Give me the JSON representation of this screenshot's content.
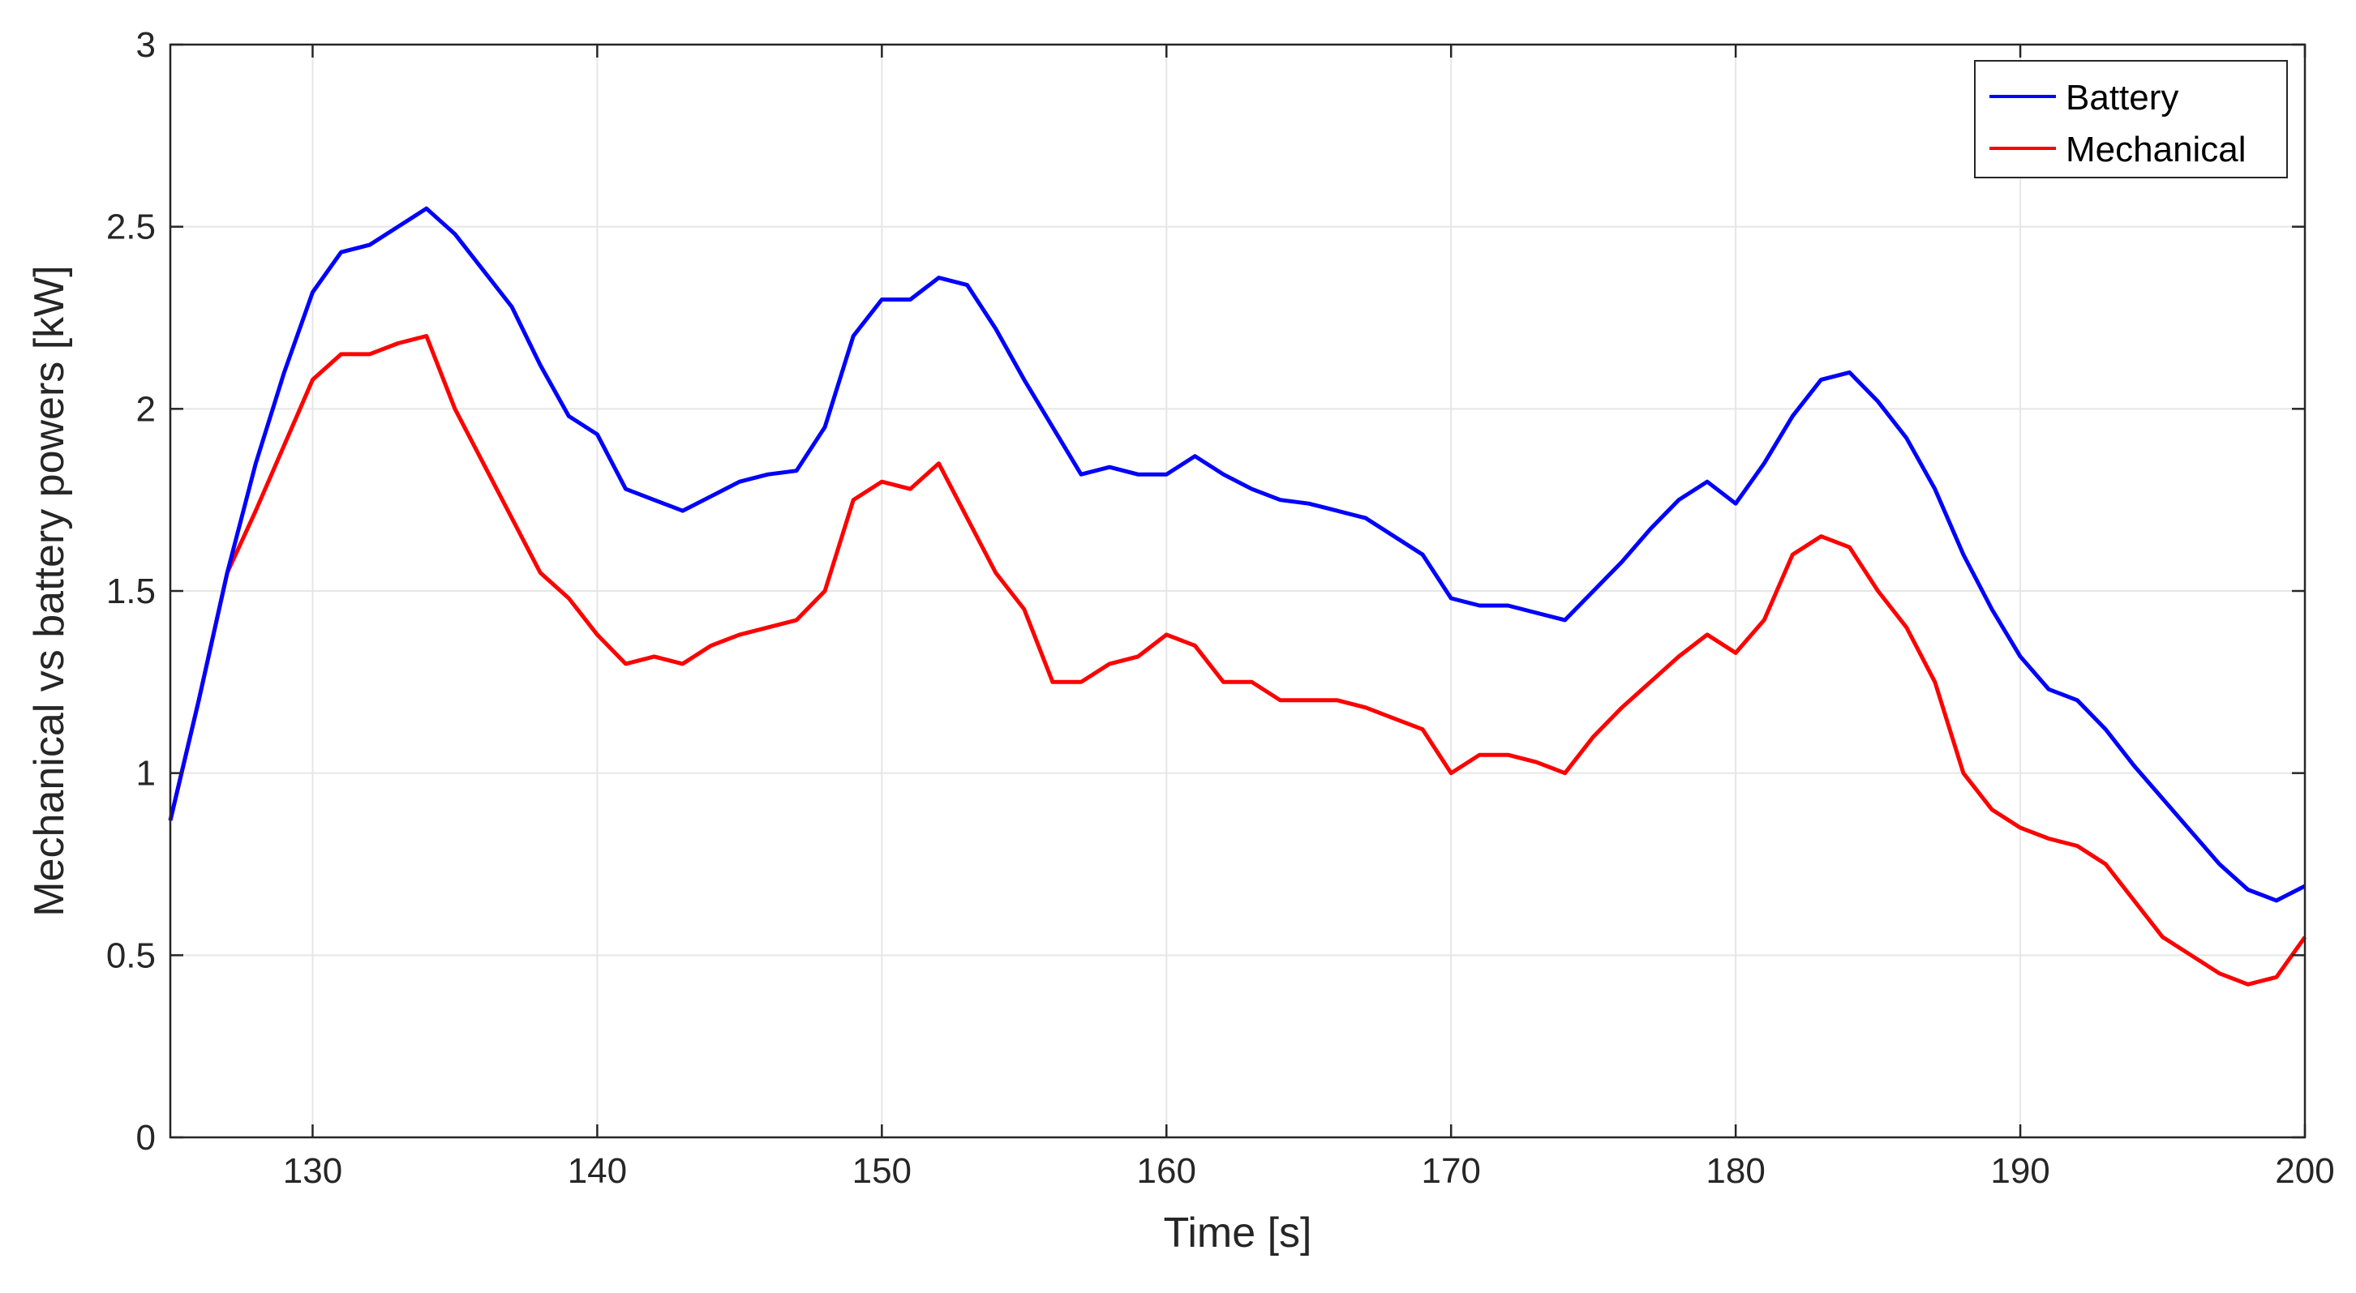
{
  "chart_data": {
    "type": "line",
    "xlabel": "Time  [s]",
    "ylabel": "Mechanical vs battery powers  [kW]",
    "xlim": [
      125,
      200
    ],
    "ylim": [
      0,
      3
    ],
    "xticks": [
      130,
      140,
      150,
      160,
      170,
      180,
      190,
      200
    ],
    "yticks": [
      0,
      0.5,
      1,
      1.5,
      2,
      2.5,
      3
    ],
    "ytick_labels": [
      "0",
      "0.5",
      "1",
      "1.5",
      "2",
      "2.5",
      "3"
    ],
    "grid": true,
    "legend_position": "top-right",
    "series": [
      {
        "name": "Battery",
        "color": "#0000ff",
        "x": [
          125,
          126,
          127,
          128,
          129,
          130,
          131,
          132,
          133,
          134,
          135,
          136,
          137,
          138,
          139,
          140,
          141,
          142,
          143,
          144,
          145,
          146,
          147,
          148,
          149,
          150,
          151,
          152,
          153,
          154,
          155,
          156,
          157,
          158,
          159,
          160,
          161,
          162,
          163,
          164,
          165,
          166,
          167,
          168,
          169,
          170,
          171,
          172,
          173,
          174,
          175,
          176,
          177,
          178,
          179,
          180,
          181,
          182,
          183,
          184,
          185,
          186,
          187,
          188,
          189,
          190,
          191,
          192,
          193,
          194,
          195,
          196,
          197,
          198,
          199,
          200
        ],
        "y": [
          0.87,
          1.2,
          1.55,
          1.85,
          2.1,
          2.32,
          2.43,
          2.45,
          2.5,
          2.55,
          2.48,
          2.38,
          2.28,
          2.12,
          1.98,
          1.93,
          1.78,
          1.75,
          1.72,
          1.76,
          1.8,
          1.82,
          1.83,
          1.95,
          2.2,
          2.3,
          2.3,
          2.36,
          2.34,
          2.22,
          2.08,
          1.95,
          1.82,
          1.84,
          1.82,
          1.82,
          1.87,
          1.82,
          1.78,
          1.75,
          1.74,
          1.72,
          1.7,
          1.65,
          1.6,
          1.48,
          1.46,
          1.46,
          1.44,
          1.42,
          1.5,
          1.58,
          1.67,
          1.75,
          1.8,
          1.74,
          1.85,
          1.98,
          2.08,
          2.1,
          2.02,
          1.92,
          1.78,
          1.6,
          1.45,
          1.32,
          1.23,
          1.2,
          1.12,
          1.02,
          0.93,
          0.84,
          0.75,
          0.68,
          0.65,
          0.69
        ]
      },
      {
        "name": "Mechanical",
        "color": "#ff0000",
        "x": [
          125,
          126,
          127,
          128,
          129,
          130,
          131,
          132,
          133,
          134,
          135,
          136,
          137,
          138,
          139,
          140,
          141,
          142,
          143,
          144,
          145,
          146,
          147,
          148,
          149,
          150,
          151,
          152,
          153,
          154,
          155,
          156,
          157,
          158,
          159,
          160,
          161,
          162,
          163,
          164,
          165,
          166,
          167,
          168,
          169,
          170,
          171,
          172,
          173,
          174,
          175,
          176,
          177,
          178,
          179,
          180,
          181,
          182,
          183,
          184,
          185,
          186,
          187,
          188,
          189,
          190,
          191,
          192,
          193,
          194,
          195,
          196,
          197,
          198,
          199,
          200
        ],
        "y": [
          0.87,
          1.2,
          1.55,
          1.72,
          1.9,
          2.08,
          2.15,
          2.15,
          2.18,
          2.2,
          2.0,
          1.85,
          1.7,
          1.55,
          1.48,
          1.38,
          1.3,
          1.32,
          1.3,
          1.35,
          1.38,
          1.4,
          1.42,
          1.5,
          1.75,
          1.8,
          1.78,
          1.85,
          1.7,
          1.55,
          1.45,
          1.25,
          1.25,
          1.3,
          1.32,
          1.38,
          1.35,
          1.25,
          1.25,
          1.2,
          1.2,
          1.2,
          1.18,
          1.15,
          1.12,
          1.0,
          1.05,
          1.05,
          1.03,
          1.0,
          1.1,
          1.18,
          1.25,
          1.32,
          1.38,
          1.33,
          1.42,
          1.6,
          1.65,
          1.62,
          1.5,
          1.4,
          1.25,
          1.0,
          0.9,
          0.85,
          0.82,
          0.8,
          0.75,
          0.65,
          0.55,
          0.5,
          0.45,
          0.42,
          0.44,
          0.55
        ]
      }
    ]
  }
}
